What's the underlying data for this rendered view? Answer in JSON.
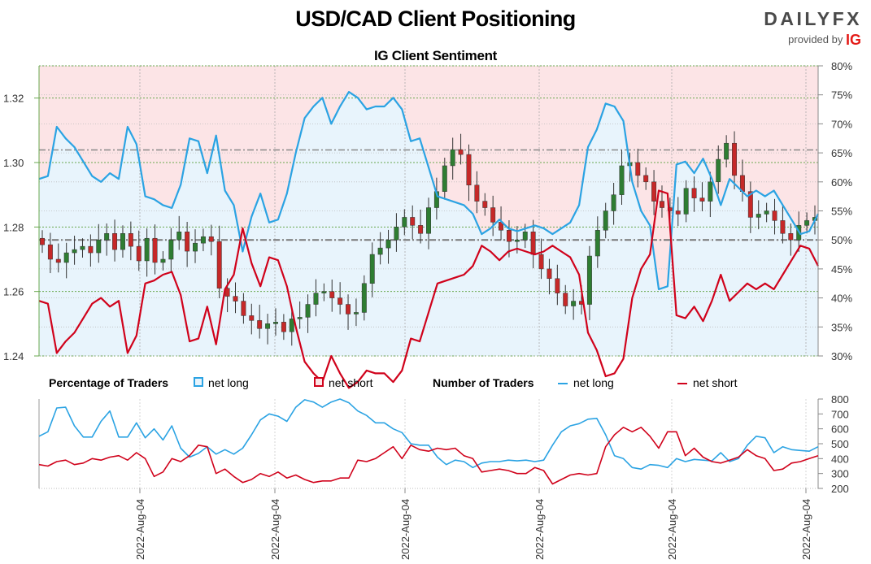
{
  "header": {
    "title": "USD/CAD Client Positioning",
    "subtitle": "IG Client Sentiment",
    "brand": "DAILYFX",
    "brand_provided_by": "provided by",
    "brand_ig": "IG"
  },
  "legend": {
    "pct_heading": "Percentage of Traders",
    "pct_long": "net long",
    "pct_short": "net short",
    "num_heading": "Number of Traders",
    "num_long": "net long",
    "num_short": "net short"
  },
  "colors": {
    "candle_up": "#2e7d32",
    "candle_down": "#c62828",
    "net_long": "#2ba3e3",
    "net_short": "#d0021b",
    "long_fill": "#e8f4fc",
    "short_fill": "#fce4e6"
  },
  "chart_data": [
    {
      "type": "candlestick",
      "title": "IG Client Sentiment",
      "price_axis": {
        "ticks": [
          "1.24",
          "1.26",
          "1.28",
          "1.30",
          "1.32"
        ],
        "ylim": [
          1.24,
          1.33
        ]
      },
      "percent_axis": {
        "ticks": [
          "30%",
          "35%",
          "40%",
          "45%",
          "50%",
          "55%",
          "60%",
          "65%",
          "70%",
          "75%",
          "80%"
        ],
        "ylim": [
          30,
          80
        ]
      },
      "reference_lines": [
        50,
        65.5
      ],
      "x_ticks": [
        "2022-Aug-04",
        "2022-Aug-04",
        "2022-Aug-04",
        "2022-Aug-04",
        "2022-Aug-04",
        "2022-Aug-04"
      ],
      "price_close": [
        1.2745,
        1.27,
        1.269,
        1.272,
        1.273,
        1.274,
        1.272,
        1.276,
        1.278,
        1.273,
        1.278,
        1.274,
        1.2695,
        1.2765,
        1.269,
        1.27,
        1.276,
        1.2785,
        1.2725,
        1.275,
        1.277,
        1.2755,
        1.261,
        1.2585,
        1.257,
        1.2525,
        1.251,
        1.2485,
        1.25,
        1.2505,
        1.2475,
        1.2515,
        1.252,
        1.256,
        1.2595,
        1.26,
        1.258,
        1.256,
        1.253,
        1.2535,
        1.2625,
        1.2715,
        1.2735,
        1.276,
        1.28,
        1.283,
        1.2805,
        1.278,
        1.286,
        1.291,
        1.299,
        1.304,
        1.3025,
        1.293,
        1.288,
        1.286,
        1.2815,
        1.279,
        1.2755,
        1.276,
        1.2785,
        1.2715,
        1.267,
        1.264,
        1.2595,
        1.2555,
        1.257,
        1.256,
        1.271,
        1.279,
        1.285,
        1.29,
        1.299,
        1.3,
        1.296,
        1.294,
        1.288,
        1.286,
        1.285,
        1.284,
        1.292,
        1.289,
        1.288,
        1.294,
        1.301,
        1.306,
        1.296,
        1.291,
        1.283,
        1.284,
        1.285,
        1.282,
        1.278,
        1.276,
        1.2805,
        1.282,
        1.283
      ],
      "series": [
        {
          "name": "net long",
          "values": [
            60.5,
            61.0,
            69.5,
            67.5,
            66.0,
            63.5,
            61.0,
            60.0,
            61.5,
            60.5,
            69.5,
            66.5,
            57.5,
            57.0,
            56.0,
            55.5,
            59.5,
            67.5,
            67.0,
            61.5,
            68.0,
            58.5,
            56.0,
            48.0,
            54.0,
            58.0,
            53.0,
            53.5,
            58.0,
            65.0,
            71.0,
            73.0,
            74.5,
            70.0,
            73.0,
            75.5,
            74.5,
            72.5,
            73.0,
            73.0,
            74.5,
            72.5,
            67.0,
            67.5,
            62.5,
            57.5,
            57.0,
            56.5,
            56.0,
            54.5,
            51.0,
            52.0,
            53.5,
            52.0,
            51.5,
            52.0,
            52.5,
            52.0,
            51.0,
            52.0,
            53.0,
            56.0,
            66.0,
            69.0,
            73.5,
            73.0,
            70.5,
            60.0,
            55.0,
            52.5,
            41.5,
            42.0,
            63.0,
            63.5,
            61.5,
            64.0,
            60.5,
            56.0,
            60.5,
            59.0,
            57.5,
            58.5,
            57.5,
            58.5,
            56.0,
            53.5,
            51.0,
            51.5,
            54.5
          ]
        },
        {
          "name": "net short",
          "values": [
            39.5,
            39.0,
            30.5,
            32.5,
            34.0,
            36.5,
            39.0,
            40.0,
            38.5,
            39.5,
            30.5,
            33.5,
            42.5,
            43.0,
            44.0,
            44.5,
            40.5,
            32.5,
            33.0,
            38.5,
            32.0,
            41.5,
            44.0,
            52.0,
            46.0,
            42.0,
            47.0,
            46.5,
            42.0,
            35.0,
            29.0,
            27.0,
            25.5,
            30.0,
            27.0,
            24.5,
            25.5,
            27.5,
            27.0,
            27.0,
            25.5,
            27.5,
            33.0,
            32.5,
            37.5,
            42.5,
            43.0,
            43.5,
            44.0,
            45.5,
            49.0,
            48.0,
            46.5,
            48.0,
            48.5,
            48.0,
            47.5,
            48.0,
            49.0,
            48.0,
            47.0,
            44.0,
            34.0,
            31.0,
            26.5,
            27.0,
            29.5,
            40.0,
            45.0,
            47.5,
            58.5,
            58.0,
            37.0,
            36.5,
            38.5,
            36.0,
            39.5,
            44.0,
            39.5,
            41.0,
            42.5,
            41.5,
            42.5,
            41.5,
            44.0,
            46.5,
            49.0,
            48.5,
            45.5
          ]
        }
      ]
    },
    {
      "type": "line",
      "title": "Number of Traders",
      "y_axis": {
        "ticks": [
          "200",
          "300",
          "400",
          "500",
          "600",
          "700",
          "800"
        ],
        "ylim": [
          200,
          800
        ]
      },
      "x_ticks": [
        "2022-Aug-04",
        "2022-Aug-04",
        "2022-Aug-04",
        "2022-Aug-04",
        "2022-Aug-04",
        "2022-Aug-04"
      ],
      "series": [
        {
          "name": "net long",
          "values": [
            550,
            580,
            740,
            745,
            620,
            545,
            545,
            650,
            720,
            545,
            545,
            640,
            540,
            600,
            525,
            620,
            470,
            410,
            435,
            480,
            430,
            460,
            430,
            470,
            560,
            660,
            700,
            685,
            650,
            745,
            795,
            780,
            745,
            780,
            800,
            775,
            720,
            690,
            640,
            640,
            600,
            575,
            500,
            490,
            490,
            410,
            360,
            390,
            380,
            340,
            370,
            380,
            380,
            390,
            385,
            390,
            380,
            390,
            490,
            580,
            620,
            635,
            665,
            670,
            560,
            420,
            400,
            340,
            330,
            360,
            355,
            340,
            400,
            380,
            395,
            390,
            385,
            440,
            380,
            400,
            490,
            550,
            540,
            440,
            480,
            460,
            455,
            450,
            480
          ]
        },
        {
          "name": "net short",
          "values": [
            360,
            350,
            380,
            390,
            360,
            370,
            400,
            390,
            410,
            420,
            390,
            440,
            400,
            280,
            310,
            400,
            380,
            420,
            490,
            480,
            300,
            330,
            280,
            240,
            260,
            300,
            280,
            310,
            270,
            290,
            260,
            240,
            250,
            250,
            270,
            270,
            390,
            380,
            400,
            440,
            480,
            400,
            490,
            460,
            450,
            470,
            460,
            470,
            420,
            400,
            310,
            320,
            330,
            320,
            300,
            300,
            340,
            320,
            230,
            260,
            290,
            300,
            290,
            300,
            480,
            560,
            610,
            580,
            610,
            550,
            470,
            580,
            580,
            420,
            470,
            410,
            380,
            370,
            390,
            410,
            460,
            420,
            400,
            320,
            330,
            370,
            380,
            400,
            420
          ]
        }
      ]
    }
  ]
}
